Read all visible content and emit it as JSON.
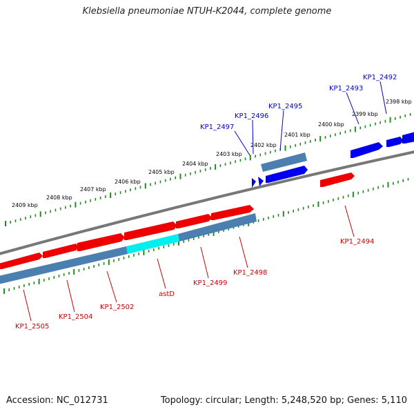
{
  "title": "Klebsiella pneumoniae NTUH-K2044, complete genome",
  "footer": {
    "accession": "Accession: NC_012731",
    "summary": "Topology: circular; Length: 5,248,520 bp; Genes: 5,110"
  },
  "colors": {
    "forward_gene": "#0000ee",
    "reverse_gene": "#ee0000",
    "highlight_gene": "#00eeee",
    "cds_feature": "#4a7fb0",
    "backbone": "#777777",
    "tick": "#228b22",
    "forward_label": "#0000cc",
    "reverse_label": "#cc0000"
  },
  "scale_labels": [
    "2409 kbp",
    "2408 kbp",
    "2407 kbp",
    "2406 kbp",
    "2405 kbp",
    "2404 kbp",
    "2403 kbp",
    "2402 kbp",
    "2401 kbp",
    "2400 kbp",
    "2399 kbp",
    "2398 kbp"
  ],
  "forward_genes": [
    "KP1_2497",
    "KP1_2496",
    "KP1_2495",
    "KP1_2493",
    "KP1_2492"
  ],
  "reverse_genes": [
    "KP1_2505",
    "KP1_2504",
    "KP1_2502",
    "astD",
    "KP1_2499",
    "KP1_2498",
    "KP1_2494"
  ]
}
